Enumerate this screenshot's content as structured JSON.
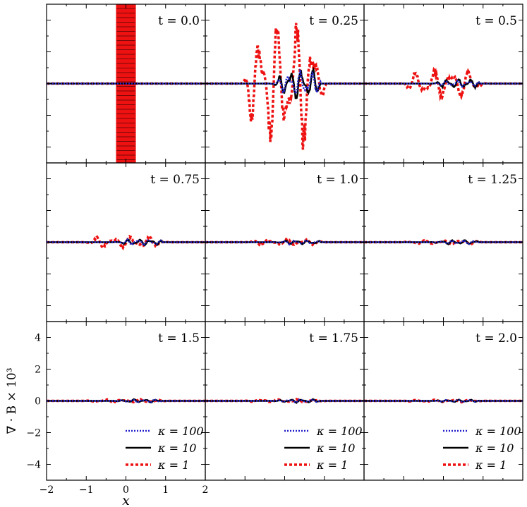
{
  "chart_data": {
    "type": "line",
    "layout": "3x3 grid of small multiples with shared axes",
    "xlabel": "x",
    "ylabel": "∇ · B × 10³",
    "xlim": [
      -2,
      2
    ],
    "ylim": [
      -5,
      5
    ],
    "x_ticks": [
      "−2",
      "−1",
      "0",
      "1",
      "2"
    ],
    "x_tick_values": [
      -2,
      -1,
      0,
      1,
      2
    ],
    "y_ticks": [
      "−4",
      "−2",
      "0",
      "2",
      "4"
    ],
    "y_tick_values": [
      -4,
      -2,
      0,
      2,
      4
    ],
    "grid": false,
    "legend_placement": "bottom-right (bottom row panels)",
    "legend": [
      {
        "label": "κ = 100",
        "color": "#2222cc",
        "style": "dotted"
      },
      {
        "label": "κ = 10",
        "color": "#000000",
        "style": "solid"
      },
      {
        "label": "κ = 1",
        "color": "#ee1111",
        "style": "dashed"
      }
    ],
    "initial_band": {
      "x_range": [
        -0.25,
        0.25
      ],
      "color": "#ee1111"
    },
    "panels": [
      {
        "title": "t = 0.0",
        "amp": {
          "k100": 0.0,
          "k10": 0.0,
          "k1": 0.0
        }
      },
      {
        "title": "t = 0.25",
        "amp": {
          "k100": 0.6,
          "k10": 0.8,
          "k1": 3.2
        }
      },
      {
        "title": "t = 0.5",
        "amp": {
          "k100": 0.15,
          "k10": 0.25,
          "k1": 0.7
        }
      },
      {
        "title": "t = 0.75",
        "amp": {
          "k100": 0.15,
          "k10": 0.15,
          "k1": 0.3
        }
      },
      {
        "title": "t = 1.0",
        "amp": {
          "k100": 0.1,
          "k10": 0.1,
          "k1": 0.15
        }
      },
      {
        "title": "t = 1.25",
        "amp": {
          "k100": 0.1,
          "k10": 0.1,
          "k1": 0.1
        }
      },
      {
        "title": "t = 1.5",
        "amp": {
          "k100": 0.08,
          "k10": 0.08,
          "k1": 0.08
        }
      },
      {
        "title": "t = 1.75",
        "amp": {
          "k100": 0.08,
          "k10": 0.08,
          "k1": 0.08
        }
      },
      {
        "title": "t = 2.0",
        "amp": {
          "k100": 0.06,
          "k10": 0.06,
          "k1": 0.06
        }
      }
    ]
  }
}
